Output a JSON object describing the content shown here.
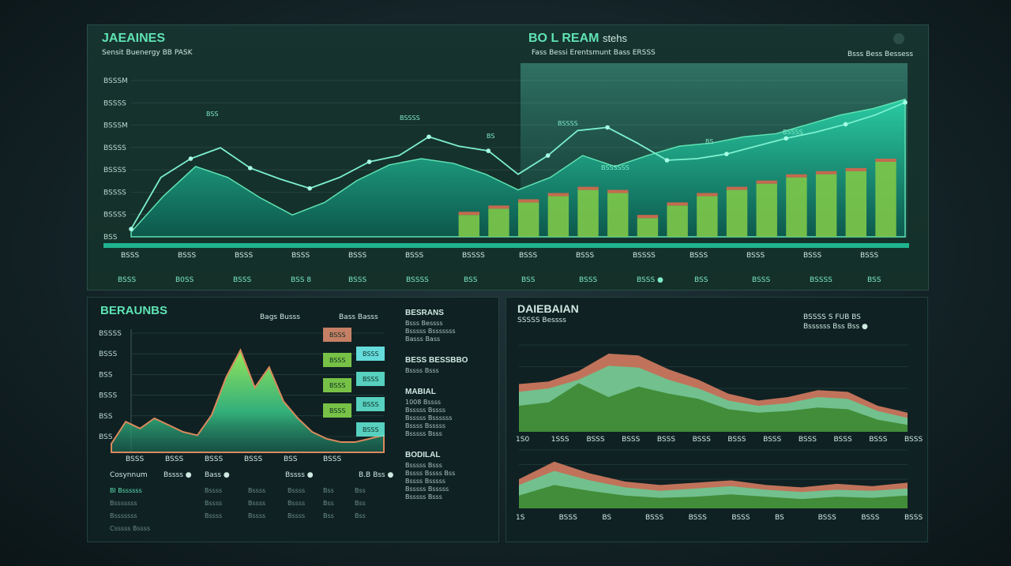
{
  "top_panel": {
    "title": "JAEAINES",
    "subtitle": "Sensit Buenergy BB PASK",
    "header_center": "BO L REAM",
    "header_center_suffix": "stehs",
    "subheader_center": "Fass Bessi Erentsmunt Bass ERSSS",
    "subheader_right": "Bsss Bess Bessess",
    "indicator_dot_label": "•",
    "colors": {
      "accent": "#5fe3b3",
      "area": "#1aa88a",
      "bar": "#7cc64a",
      "cap": "#c46a4e"
    }
  },
  "bottom_left": {
    "title": "BERAUNBS",
    "subtitle": "Bags Busss",
    "subtitle2": "Bass Basss",
    "side_headings": [
      "BESRANS",
      "BESS BESSBBO",
      "MABIAL",
      "BODILAL"
    ],
    "side_lines": [
      [
        "Bsss Bessss",
        "Bsssss Bsssssss",
        "Basss Bass"
      ],
      [
        "Bssss Bsss"
      ],
      [
        "1008 Bssss",
        "Bsssss Bssss",
        "Bsssss Bssssss",
        "Bssss Bsssss",
        "Bsssss Bsss"
      ],
      [
        "Bsssss Bsss",
        "Bssss Bssss Bss",
        "Bssss Bsssss",
        "Bsssss Bsssss",
        "Bsssss Bsss"
      ]
    ],
    "table_header": [
      "Cosynnum",
      "Bssss ●",
      "Bass ●",
      "Bssss ●",
      "B.B Bss ●"
    ],
    "table_rows": [
      [
        "Bl Bssssss",
        "Bssss",
        "Bssss",
        "Bssss",
        "Bss",
        "Bss"
      ],
      [
        "Bsssssss",
        "Bssss",
        "Bssss",
        "Bssss",
        "Bss",
        "Bss"
      ],
      [
        "Bsssssss",
        "Bssss",
        "Bssss",
        "Bssss",
        "Bss",
        "Bss"
      ],
      [
        "Csssss Bssss"
      ]
    ]
  },
  "bottom_right": {
    "title": "DAIEBAIAN",
    "subtitle": "SSSSS Bessss",
    "legend_text": "BSSSS S FUB BS",
    "legend_sub": "Bssssss Bss Bss ●",
    "colors": {
      "outer": "#c0735a",
      "mid": "#6ec491",
      "inner": "#3e8a35"
    }
  },
  "chart_data": [
    {
      "type": "area",
      "title": "",
      "xlabel": "",
      "ylabel": "",
      "y_tick_labels": [
        "BSSSM",
        "BSSSS",
        "BSSSM",
        "BSSSS",
        "BSSSS",
        "BSSSS",
        "BSSSS",
        "BSS"
      ],
      "x_tick_labels": [
        "BSSS",
        "BSSS",
        "BSSS",
        "BSSS",
        "BSSS",
        "BSSS",
        "BSSSS",
        "BSSS",
        "BSSS",
        "BSSSS",
        "BSSS",
        "BSSS",
        "BSSS",
        "BSSS"
      ],
      "bottom_labels": [
        "BSSS",
        "B0SS",
        "BSSS",
        "BSS 8",
        "BSSS",
        "BSSSS",
        "BSS",
        "BSS",
        "BSSS",
        "BSSS ●",
        "BSS",
        "BSSS",
        "BSSSS",
        "BSS"
      ],
      "series": [
        {
          "kind": "line",
          "values": [
            5,
            38,
            50,
            57,
            44,
            37,
            31,
            38,
            48,
            52,
            64,
            58,
            55,
            40,
            52,
            68,
            70,
            60,
            49,
            50,
            53,
            58,
            63,
            67,
            72,
            78,
            86
          ]
        },
        {
          "kind": "area",
          "values": [
            3,
            26,
            45,
            38,
            25,
            14,
            22,
            36,
            46,
            50,
            47,
            40,
            30,
            38,
            52,
            45,
            52,
            58,
            60,
            64,
            66,
            72,
            78,
            82,
            88
          ]
        },
        {
          "kind": "bars",
          "values": [
            0,
            0,
            0,
            0,
            0,
            0,
            0,
            0,
            0,
            0,
            0,
            14,
            18,
            22,
            26,
            30,
            28,
            12,
            20,
            26,
            30,
            34,
            38,
            40,
            42,
            48
          ]
        }
      ],
      "point_labels": [
        "BSS",
        "BSSSS",
        "BS",
        "BSSSS",
        "BSSSSSS",
        "BS",
        "BSSSS"
      ]
    },
    {
      "type": "area",
      "title": "",
      "y_tick_labels": [
        "BSSSS",
        "BSSS",
        "BSS",
        "BSSS",
        "BSS",
        "BSS"
      ],
      "x_tick_labels": [
        "BSSS",
        "BSSS",
        "BSSS",
        "BSSS",
        "BSS",
        "BSSS"
      ],
      "series": [
        {
          "kind": "area",
          "values": [
            5,
            18,
            14,
            20,
            16,
            12,
            10,
            22,
            44,
            60,
            38,
            50,
            30,
            20,
            12,
            8,
            6,
            6,
            8,
            10
          ]
        }
      ],
      "bar_labels": [
        {
          "label": "BSSS",
          "value": 48,
          "color": "#d98a6c"
        },
        {
          "label": "BSSS",
          "value": 38,
          "color": "#6ff0f0"
        },
        {
          "label": "BSSS",
          "value": 56,
          "color": "#83d44a"
        },
        {
          "label": "BSSS",
          "value": 40,
          "color": "#5fe3d0"
        },
        {
          "label": "BSSS",
          "value": 62,
          "color": "#83d44a"
        },
        {
          "label": "BSSS",
          "value": 46,
          "color": "#5fe3d0"
        },
        {
          "label": "BSSS",
          "value": 64,
          "color": "#83d44a"
        },
        {
          "label": "BSSS",
          "value": 52,
          "color": "#5fe3d0"
        }
      ]
    },
    {
      "type": "area",
      "title": "",
      "x_tick_labels": [
        "1S0",
        "1SSS",
        "BSSS",
        "BSSS",
        "BSSS",
        "BSSS",
        "BSSS",
        "BSSS",
        "BSSS",
        "BSSS",
        "BSSS",
        "BSSS"
      ],
      "series": [
        {
          "name": "outer",
          "values": [
            55,
            58,
            70,
            90,
            88,
            72,
            60,
            44,
            36,
            40,
            48,
            46,
            30,
            22
          ]
        },
        {
          "name": "mid",
          "values": [
            46,
            50,
            60,
            76,
            74,
            60,
            50,
            36,
            30,
            33,
            40,
            38,
            24,
            16
          ]
        },
        {
          "name": "inner",
          "values": [
            30,
            34,
            56,
            40,
            52,
            44,
            38,
            26,
            22,
            24,
            28,
            26,
            14,
            8
          ]
        }
      ]
    },
    {
      "type": "area",
      "title": "",
      "x_tick_labels": [
        "1S",
        "BSSS",
        "BS",
        "BSSS",
        "BSSS",
        "BSSS",
        "BS",
        "BSSS",
        "BSSS",
        "BSSS"
      ],
      "series": [
        {
          "name": "outer",
          "values": [
            50,
            80,
            60,
            46,
            40,
            44,
            48,
            40,
            36,
            42,
            38,
            44
          ]
        },
        {
          "name": "mid",
          "values": [
            40,
            64,
            48,
            36,
            30,
            34,
            38,
            32,
            28,
            32,
            30,
            34
          ]
        },
        {
          "name": "inner",
          "values": [
            22,
            40,
            30,
            22,
            18,
            20,
            24,
            20,
            16,
            20,
            18,
            22
          ]
        }
      ]
    }
  ]
}
